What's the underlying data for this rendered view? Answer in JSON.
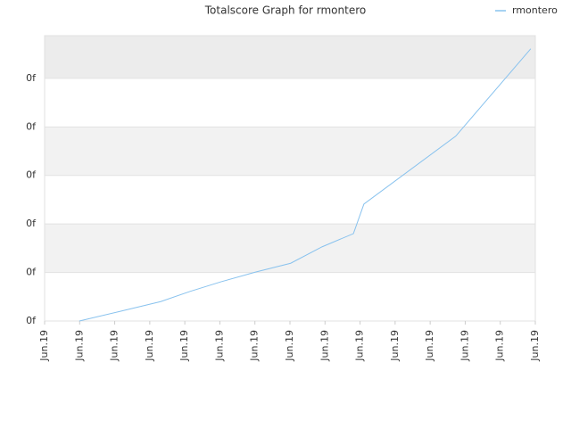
{
  "chart_data": {
    "type": "line",
    "title": "Totalscore Graph for rmontero",
    "x": [
      0.99,
      2.16,
      3.31,
      4.15,
      5.04,
      6.03,
      7.02,
      7.92,
      8.81,
      9.11,
      11.73,
      13.87
    ],
    "series": [
      {
        "name": "rmontero",
        "color": "#88c2ee",
        "values": [
          0,
          0.2,
          0.4,
          0.61,
          0.81,
          1.01,
          1.19,
          1.53,
          1.8,
          2.41,
          3.81,
          5.61
        ]
      }
    ],
    "xlim": [
      0,
      14
    ],
    "xticks": [
      {
        "value": 0,
        "label": "Jun.19"
      },
      {
        "value": 1,
        "label": "Jun.19"
      },
      {
        "value": 2,
        "label": "Jun.19"
      },
      {
        "value": 3,
        "label": "Jun.19"
      },
      {
        "value": 4,
        "label": "Jun.19"
      },
      {
        "value": 5,
        "label": "Jun.19"
      },
      {
        "value": 6,
        "label": "Jun.19"
      },
      {
        "value": 7,
        "label": "Jun.19"
      },
      {
        "value": 8,
        "label": "Jun.19"
      },
      {
        "value": 9,
        "label": "Jun.19"
      },
      {
        "value": 10,
        "label": "Jun.19"
      },
      {
        "value": 11,
        "label": "Jun.19"
      },
      {
        "value": 12,
        "label": "Jun.19"
      },
      {
        "value": 13,
        "label": "Jun.19"
      },
      {
        "value": 14,
        "label": "Jun.19"
      }
    ],
    "ylim": [
      0,
      5.88
    ],
    "yticks": [
      {
        "value": 0,
        "label": "0f"
      },
      {
        "value": 1,
        "label": "0f"
      },
      {
        "value": 2,
        "label": "0f"
      },
      {
        "value": 3,
        "label": "0f"
      },
      {
        "value": 4,
        "label": "0f"
      },
      {
        "value": 5,
        "label": "0f"
      }
    ],
    "grid": true,
    "legend": "top-right"
  }
}
